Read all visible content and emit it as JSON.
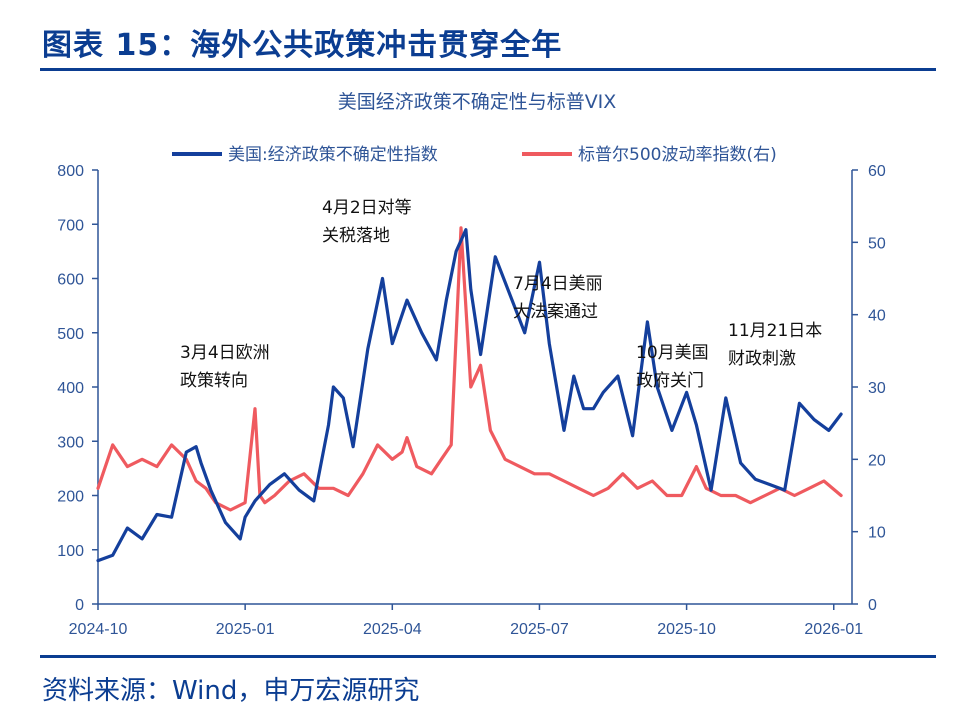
{
  "figure": {
    "title": "图表 15：海外公共政策冲击贯穿全年",
    "source": "资料来源：Wind，申万宏源研究"
  },
  "colors": {
    "epu": "#143f9c",
    "vix": "#ef5a5f",
    "axis": "#2f5597",
    "title": "#0b3d91"
  },
  "chart_data": {
    "type": "line",
    "title": "美国经济政策不确定性与标普VIX",
    "legend_position": "top",
    "x_ticks": [
      "2024-10",
      "2025-01",
      "2025-04",
      "2025-07",
      "2025-10",
      "2026-01"
    ],
    "x_range_months": [
      0,
      15.15
    ],
    "y_left": {
      "min": 0,
      "max": 800,
      "ticks": [
        0,
        100,
        200,
        300,
        400,
        500,
        600,
        700,
        800
      ]
    },
    "y_right": {
      "min": 0,
      "max": 60,
      "ticks": [
        0,
        10,
        20,
        30,
        40,
        50,
        60
      ]
    },
    "series": [
      {
        "name": "美国:经济政策不确定性指数",
        "axis": "left",
        "color": "#143f9c",
        "x": [
          0,
          0.3,
          0.6,
          0.9,
          1.2,
          1.5,
          1.8,
          2.0,
          2.1,
          2.3,
          2.6,
          2.9,
          3.0,
          3.2,
          3.5,
          3.8,
          4.1,
          4.4,
          4.7,
          4.8,
          5.0,
          5.2,
          5.5,
          5.8,
          6.0,
          6.3,
          6.6,
          6.9,
          7.1,
          7.3,
          7.5,
          7.6,
          7.8,
          8.1,
          8.4,
          8.7,
          9.0,
          9.2,
          9.5,
          9.7,
          9.9,
          10.1,
          10.3,
          10.6,
          10.9,
          11.2,
          11.4,
          11.7,
          12.0,
          12.2,
          12.5,
          12.8,
          13.1,
          13.4,
          13.7,
          14.0,
          14.3,
          14.6,
          14.9,
          15.15
        ],
        "values": [
          80,
          90,
          140,
          120,
          165,
          160,
          280,
          290,
          260,
          210,
          150,
          120,
          160,
          190,
          220,
          240,
          210,
          190,
          330,
          400,
          380,
          290,
          470,
          600,
          480,
          560,
          500,
          450,
          560,
          650,
          690,
          580,
          460,
          640,
          570,
          500,
          630,
          480,
          320,
          420,
          360,
          360,
          390,
          420,
          310,
          520,
          400,
          320,
          390,
          330,
          210,
          380,
          260,
          230,
          220,
          210,
          370,
          340,
          320,
          350
        ]
      },
      {
        "name": "标普尔500波动率指数(右)",
        "axis": "right",
        "color": "#ef5a5f",
        "x": [
          0,
          0.3,
          0.6,
          0.9,
          1.2,
          1.5,
          1.8,
          2.0,
          2.2,
          2.4,
          2.7,
          3.0,
          3.2,
          3.3,
          3.4,
          3.6,
          3.9,
          4.2,
          4.5,
          4.8,
          5.1,
          5.4,
          5.7,
          6.0,
          6.2,
          6.3,
          6.5,
          6.8,
          7.0,
          7.2,
          7.4,
          7.6,
          7.8,
          8.0,
          8.3,
          8.6,
          8.9,
          9.2,
          9.5,
          9.8,
          10.1,
          10.4,
          10.7,
          11.0,
          11.3,
          11.6,
          11.9,
          12.2,
          12.4,
          12.7,
          13.0,
          13.3,
          13.6,
          13.9,
          14.2,
          14.5,
          14.8,
          15.15
        ],
        "values": [
          16,
          22,
          19,
          20,
          19,
          22,
          20,
          17,
          16,
          14,
          13,
          14,
          27,
          15,
          14,
          15,
          17,
          18,
          16,
          16,
          15,
          18,
          22,
          20,
          21,
          23,
          19,
          18,
          20,
          22,
          52,
          30,
          33,
          24,
          20,
          19,
          18,
          18,
          17,
          16,
          15,
          16,
          18,
          16,
          17,
          15,
          15,
          19,
          16,
          15,
          15,
          14,
          15,
          16,
          15,
          16,
          17,
          15
        ]
      }
    ],
    "annotations": [
      {
        "lines": [
          "3月4日欧洲",
          "政策转向"
        ]
      },
      {
        "lines": [
          "4月2日对等",
          "关税落地"
        ]
      },
      {
        "lines": [
          "7月4日美丽",
          "大法案通过"
        ]
      },
      {
        "lines": [
          "10月美国",
          "政府关门"
        ]
      },
      {
        "lines": [
          "11月21日本",
          "财政刺激"
        ]
      }
    ]
  }
}
